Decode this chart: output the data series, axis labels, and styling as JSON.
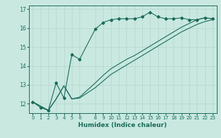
{
  "xlabel": "Humidex (Indice chaleur)",
  "bg_color": "#c8e8e0",
  "grid_color": "#b8d8d0",
  "line_color": "#1a6b5a",
  "xlim": [
    -0.5,
    23.5
  ],
  "ylim": [
    11.5,
    17.2
  ],
  "xticks": [
    0,
    1,
    2,
    3,
    4,
    5,
    6,
    8,
    9,
    10,
    11,
    12,
    13,
    14,
    15,
    16,
    17,
    18,
    19,
    20,
    21,
    22,
    23
  ],
  "yticks": [
    12,
    13,
    14,
    15,
    16,
    17
  ],
  "series1_x": [
    0,
    1,
    2,
    3,
    4,
    5,
    6,
    8,
    9,
    10,
    11,
    12,
    13,
    14,
    15,
    16,
    17,
    18,
    19,
    20,
    21,
    22,
    23
  ],
  "series1_y": [
    12.1,
    11.8,
    11.65,
    13.1,
    12.3,
    14.6,
    14.35,
    15.95,
    16.3,
    16.45,
    16.5,
    16.5,
    16.5,
    16.6,
    16.85,
    16.6,
    16.5,
    16.5,
    16.55,
    16.45,
    16.45,
    16.55,
    16.5
  ],
  "series2_x": [
    0,
    2,
    3,
    4,
    5,
    6,
    8,
    9,
    10,
    11,
    12,
    13,
    14,
    15,
    16,
    17,
    18,
    19,
    20,
    21,
    22,
    23
  ],
  "series2_y": [
    12.1,
    11.65,
    12.25,
    12.95,
    12.25,
    12.3,
    12.85,
    13.2,
    13.55,
    13.8,
    14.05,
    14.3,
    14.55,
    14.8,
    15.05,
    15.3,
    15.55,
    15.8,
    16.0,
    16.2,
    16.35,
    16.45
  ],
  "series3_x": [
    0,
    2,
    3,
    4,
    5,
    6,
    8,
    9,
    10,
    11,
    12,
    13,
    14,
    15,
    16,
    17,
    18,
    19,
    20,
    21,
    22,
    23
  ],
  "series3_y": [
    12.1,
    11.65,
    12.25,
    12.95,
    12.25,
    12.35,
    13.1,
    13.5,
    13.85,
    14.1,
    14.35,
    14.55,
    14.8,
    15.05,
    15.3,
    15.55,
    15.8,
    16.05,
    16.25,
    16.45,
    16.55,
    16.5
  ]
}
